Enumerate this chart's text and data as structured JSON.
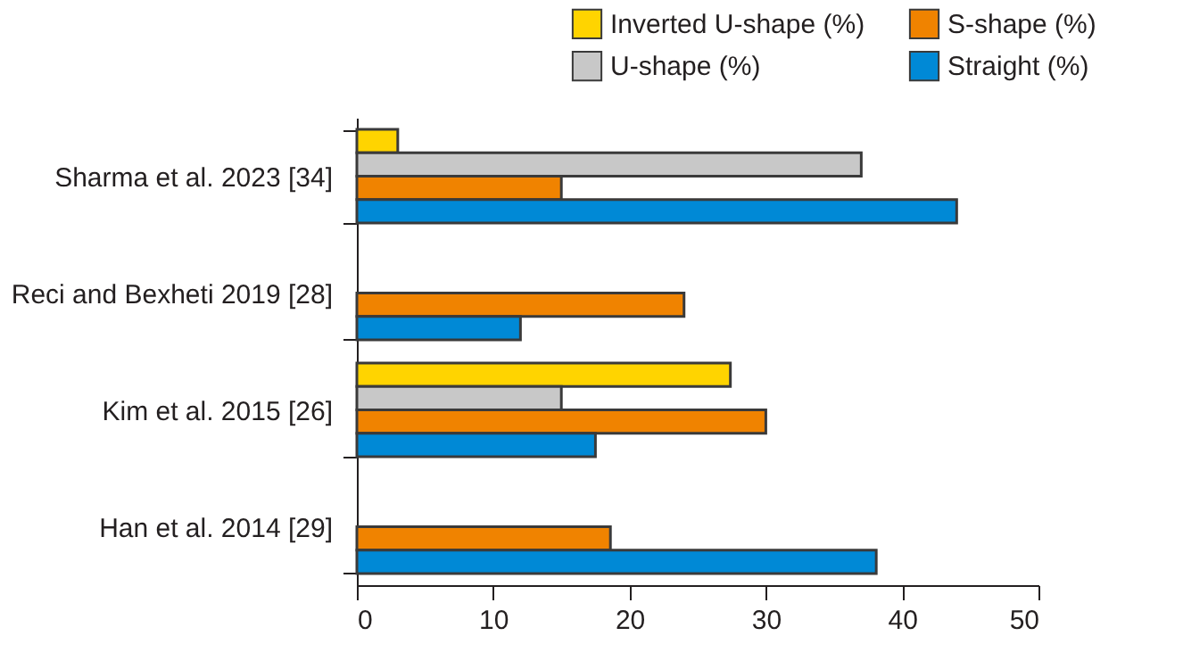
{
  "chart_data": {
    "type": "bar",
    "orientation": "horizontal",
    "categories": [
      "Sharma et al. 2023 [34]",
      "Reci and Bexheti 2019 [28]",
      "Kim et al. 2015 [26]",
      "Han et al. 2014 [29]"
    ],
    "series": [
      {
        "name": "Inverted U-shape (%)",
        "color": "#ffd400",
        "values": [
          3,
          null,
          27.4,
          null
        ]
      },
      {
        "name": "U-shape (%)",
        "color": "#c8c8c8",
        "values": [
          37,
          null,
          15,
          null
        ]
      },
      {
        "name": "S-shape (%)",
        "color": "#f08300",
        "values": [
          15,
          24,
          30,
          18.6
        ]
      },
      {
        "name": "Straight (%)",
        "color": "#0089d6",
        "values": [
          44,
          12,
          17.5,
          38.1
        ]
      }
    ],
    "xlim": [
      0,
      50
    ],
    "xticks": [
      0,
      10,
      20,
      30,
      40,
      50
    ],
    "grid": false,
    "legend": "top right"
  }
}
